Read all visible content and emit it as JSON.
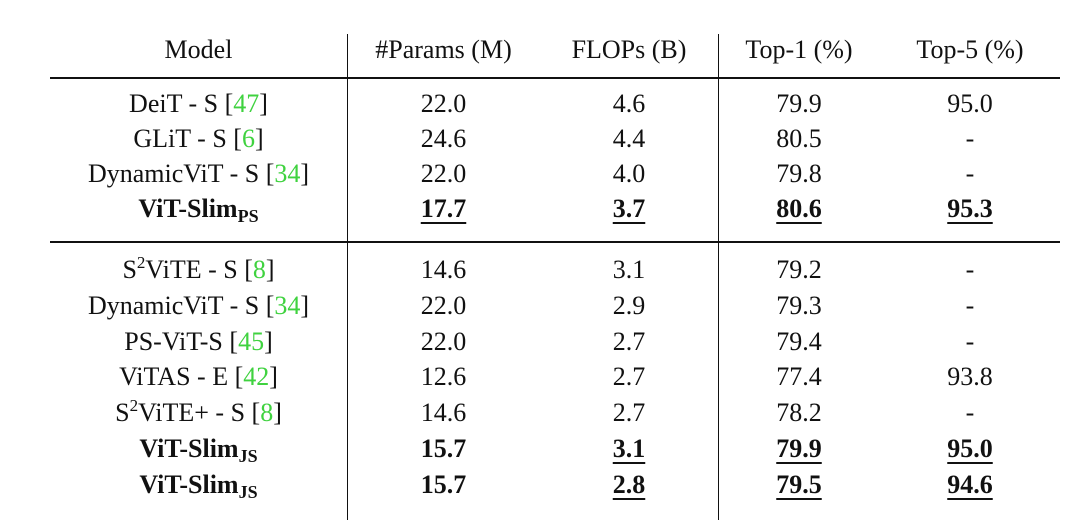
{
  "table": {
    "header": [
      "Model",
      "#Params (M)",
      "FLOPs (B)",
      "Top-1 (%)",
      "Top-5 (%)"
    ],
    "groups": [
      [
        {
          "model": [
            {
              "text": "DeiT - S ["
            },
            {
              "cite": "47"
            },
            {
              "text": "]"
            }
          ],
          "cells": [
            {
              "text": "22.0"
            },
            {
              "text": "4.6"
            },
            {
              "text": "79.9"
            },
            {
              "text": "95.0"
            }
          ]
        },
        {
          "model": [
            {
              "text": "GLiT - S ["
            },
            {
              "cite": "6"
            },
            {
              "text": "]"
            }
          ],
          "cells": [
            {
              "text": "24.6"
            },
            {
              "text": "4.4"
            },
            {
              "text": "80.5"
            },
            {
              "text": "-"
            }
          ]
        },
        {
          "model": [
            {
              "text": "DynamicViT - S ["
            },
            {
              "cite": "34"
            },
            {
              "text": "]"
            }
          ],
          "cells": [
            {
              "text": "22.0"
            },
            {
              "text": "4.0"
            },
            {
              "text": "79.8"
            },
            {
              "text": "-"
            }
          ]
        },
        {
          "bold": true,
          "model": [
            {
              "text": "ViT-Slim"
            },
            {
              "sub": "PS"
            }
          ],
          "cells": [
            {
              "text": "17.7",
              "underline": true
            },
            {
              "text": "3.7",
              "underline": true
            },
            {
              "text": "80.6",
              "underline": true
            },
            {
              "text": "95.3",
              "underline": true
            }
          ]
        }
      ],
      [
        {
          "model": [
            {
              "text": "S"
            },
            {
              "sup": "2"
            },
            {
              "text": "ViTE - S ["
            },
            {
              "cite": "8"
            },
            {
              "text": "]"
            }
          ],
          "cells": [
            {
              "text": "14.6"
            },
            {
              "text": "3.1"
            },
            {
              "text": "79.2"
            },
            {
              "text": "-"
            }
          ]
        },
        {
          "model": [
            {
              "text": "DynamicViT - S ["
            },
            {
              "cite": "34"
            },
            {
              "text": "]"
            }
          ],
          "cells": [
            {
              "text": "22.0"
            },
            {
              "text": "2.9"
            },
            {
              "text": "79.3"
            },
            {
              "text": "-"
            }
          ]
        },
        {
          "model": [
            {
              "text": "PS-ViT-S ["
            },
            {
              "cite": "45"
            },
            {
              "text": "]"
            }
          ],
          "cells": [
            {
              "text": "22.0"
            },
            {
              "text": "2.7"
            },
            {
              "text": "79.4"
            },
            {
              "text": "-"
            }
          ]
        },
        {
          "model": [
            {
              "text": "ViTAS - E ["
            },
            {
              "cite": "42"
            },
            {
              "text": "]"
            }
          ],
          "cells": [
            {
              "text": "12.6"
            },
            {
              "text": "2.7"
            },
            {
              "text": "77.4"
            },
            {
              "text": "93.8"
            }
          ]
        },
        {
          "model": [
            {
              "text": "S"
            },
            {
              "sup": "2"
            },
            {
              "text": "ViTE+ - S ["
            },
            {
              "cite": "8"
            },
            {
              "text": "]"
            }
          ],
          "cells": [
            {
              "text": "14.6"
            },
            {
              "text": "2.7"
            },
            {
              "text": "78.2"
            },
            {
              "text": "-"
            }
          ]
        },
        {
          "bold": true,
          "model": [
            {
              "text": "ViT-Slim"
            },
            {
              "sub": "JS"
            }
          ],
          "cells": [
            {
              "text": "15.7"
            },
            {
              "text": "3.1",
              "underline": true
            },
            {
              "text": "79.9",
              "underline": true
            },
            {
              "text": "95.0",
              "underline": true
            }
          ]
        },
        {
          "bold": true,
          "model": [
            {
              "text": "ViT-Slim"
            },
            {
              "sub": "JS"
            }
          ],
          "cells": [
            {
              "text": "15.7"
            },
            {
              "text": "2.8",
              "underline": true
            },
            {
              "text": "79.5",
              "underline": true
            },
            {
              "text": "94.6",
              "underline": true
            }
          ]
        }
      ]
    ]
  }
}
